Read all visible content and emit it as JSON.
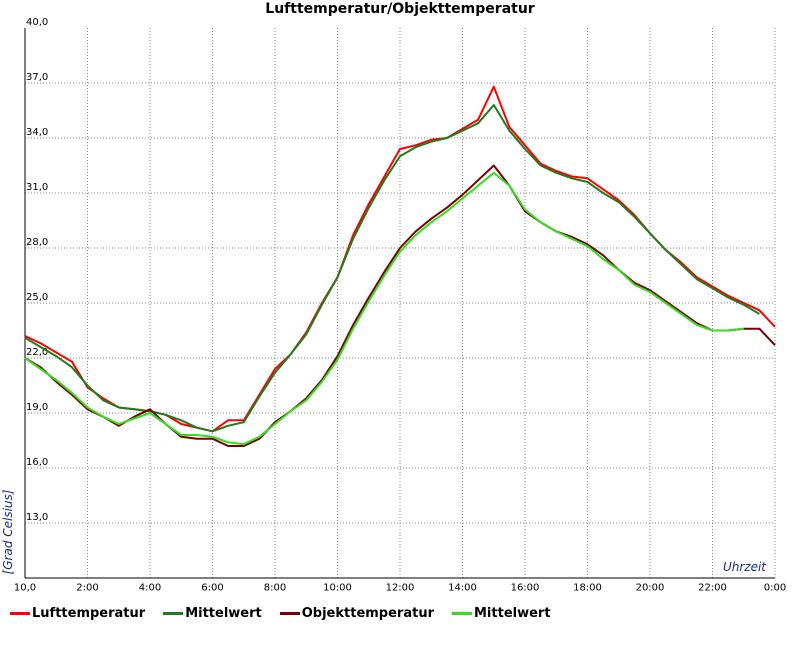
{
  "chart_data": {
    "type": "line",
    "title": "Lufttemperatur/Objekttemperatur",
    "xlabel": "Uhrzeit",
    "ylabel": "[Grad Celsius]",
    "xlim": [
      0,
      24
    ],
    "ylim": [
      10,
      40
    ],
    "grid": true,
    "legend_position": "bottom",
    "x_tick_labels": [
      "10,0",
      "2:00",
      "4:00",
      "6:00",
      "8:00",
      "10:00",
      "12:00",
      "14:00",
      "16:00",
      "18:00",
      "20:00",
      "22:00",
      "0:00"
    ],
    "y_tick_labels": [
      "10,0",
      "13,0",
      "16,0",
      "19,0",
      "22,0",
      "25,0",
      "28,0",
      "31,0",
      "34,0",
      "37,0",
      "40,0"
    ],
    "x": [
      0,
      0.5,
      1,
      1.5,
      2,
      2.5,
      3,
      3.5,
      4,
      4.5,
      5,
      5.5,
      6,
      6.5,
      7,
      7.5,
      8,
      8.5,
      9,
      9.5,
      10,
      10.5,
      11,
      11.5,
      12,
      12.5,
      13,
      13.5,
      14,
      14.5,
      15,
      15.5,
      16,
      16.5,
      17,
      17.5,
      18,
      18.5,
      19,
      19.5,
      20,
      20.5,
      21,
      21.5,
      22,
      22.5,
      23,
      23.5,
      24
    ],
    "series": [
      {
        "name": "Lufttemperatur",
        "color": "#ff0000",
        "values": [
          23.2,
          22.8,
          22.3,
          21.8,
          20.4,
          19.8,
          19.3,
          19.2,
          19.1,
          18.9,
          18.4,
          18.2,
          18.0,
          18.6,
          18.6,
          20.0,
          21.4,
          22.2,
          23.4,
          25.0,
          26.4,
          28.7,
          30.4,
          31.9,
          33.4,
          33.6,
          33.9,
          34.0,
          34.5,
          35.0,
          36.8,
          34.6,
          33.6,
          32.6,
          32.2,
          31.9,
          31.8,
          31.2,
          30.6,
          29.8,
          28.8,
          27.9,
          27.2,
          26.4,
          25.9,
          25.4,
          25.0,
          24.6,
          23.7
        ]
      },
      {
        "name": "Mittelwert",
        "color": "#1e7d1e",
        "values": [
          23.1,
          22.6,
          22.1,
          21.5,
          20.5,
          19.7,
          19.3,
          19.2,
          19.1,
          18.9,
          18.6,
          18.2,
          18.0,
          18.3,
          18.5,
          19.9,
          21.2,
          22.2,
          23.3,
          24.9,
          26.4,
          28.5,
          30.2,
          31.7,
          33.0,
          33.5,
          33.8,
          34.0,
          34.4,
          34.8,
          35.8,
          34.4,
          33.4,
          32.5,
          32.1,
          31.8,
          31.6,
          31.0,
          30.5,
          29.7,
          28.8,
          27.9,
          27.1,
          26.3,
          25.8,
          25.3,
          24.9,
          24.4,
          null
        ]
      },
      {
        "name": "Objekttemperatur",
        "color": "#7a0000",
        "values": [
          22.0,
          21.5,
          20.7,
          20.0,
          19.2,
          18.8,
          18.3,
          18.8,
          19.2,
          18.4,
          17.7,
          17.6,
          17.6,
          17.2,
          17.2,
          17.6,
          18.5,
          19.1,
          19.8,
          20.8,
          22.1,
          23.8,
          25.3,
          26.7,
          28.0,
          28.9,
          29.6,
          30.2,
          30.9,
          31.7,
          32.5,
          31.4,
          30.0,
          29.4,
          28.9,
          28.6,
          28.2,
          27.6,
          26.8,
          26.1,
          25.7,
          25.1,
          24.5,
          23.9,
          23.5,
          23.5,
          23.6,
          23.6,
          22.7
        ]
      },
      {
        "name": "Mittelwert",
        "color": "#33dd22",
        "values": [
          22.0,
          21.4,
          20.8,
          20.1,
          19.3,
          18.8,
          18.4,
          18.7,
          19.0,
          18.4,
          17.8,
          17.8,
          17.7,
          17.4,
          17.3,
          17.7,
          18.4,
          19.1,
          19.7,
          20.7,
          21.9,
          23.6,
          25.1,
          26.5,
          27.8,
          28.7,
          29.4,
          30.0,
          30.7,
          31.4,
          32.1,
          31.4,
          30.1,
          29.4,
          28.9,
          28.5,
          28.1,
          27.4,
          26.8,
          26.0,
          25.6,
          25.0,
          24.4,
          23.8,
          23.5,
          23.5,
          23.6,
          null,
          null
        ]
      }
    ]
  }
}
